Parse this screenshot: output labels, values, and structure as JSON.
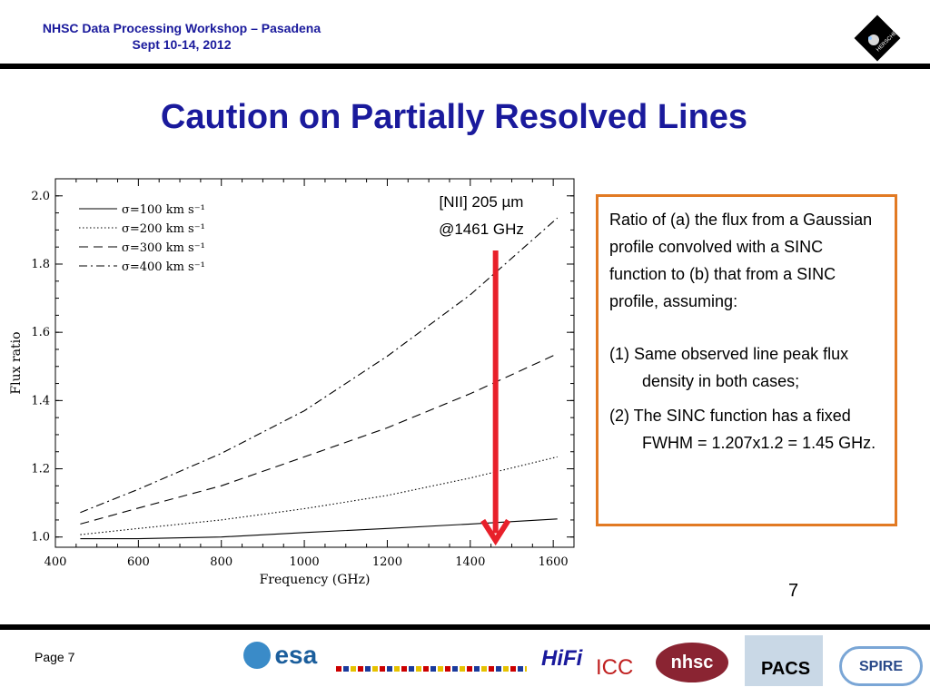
{
  "header": {
    "line1": "NHSC Data Processing Workshop – Pasadena",
    "line2": "Sept 10-14, 2012",
    "logo_text": "HERSCHEL"
  },
  "title": "Caution on Partially Resolved Lines",
  "chart_data": {
    "type": "line",
    "xlabel": "Frequency (GHz)",
    "ylabel": "Flux ratio",
    "xlim": [
      400,
      1650
    ],
    "ylim": [
      0.97,
      2.05
    ],
    "xticks": [
      "400",
      "600",
      "800",
      "1000",
      "1200",
      "1400",
      "1600"
    ],
    "yticks": [
      "1.0",
      "1.2",
      "1.4",
      "1.6",
      "1.8",
      "2.0"
    ],
    "legend": [
      "σ=100  km  s⁻¹",
      "σ=200  km  s⁻¹",
      "σ=300  km  s⁻¹",
      "σ=400  km  s⁻¹"
    ],
    "series": [
      {
        "name": "σ=100 km s-1",
        "style": "solid",
        "x": [
          460,
          600,
          800,
          1000,
          1200,
          1400,
          1610
        ],
        "y": [
          0.995,
          0.995,
          1.0,
          1.013,
          1.025,
          1.038,
          1.053
        ]
      },
      {
        "name": "σ=200 km s-1",
        "style": "dotted",
        "x": [
          460,
          600,
          800,
          1000,
          1200,
          1400,
          1610
        ],
        "y": [
          1.007,
          1.025,
          1.05,
          1.083,
          1.122,
          1.173,
          1.235
        ]
      },
      {
        "name": "σ=300 km s-1",
        "style": "dashed",
        "x": [
          460,
          600,
          800,
          1000,
          1200,
          1400,
          1610
        ],
        "y": [
          1.038,
          1.085,
          1.15,
          1.235,
          1.32,
          1.42,
          1.537
        ]
      },
      {
        "name": "σ=400 km s-1",
        "style": "dashdot",
        "x": [
          460,
          600,
          800,
          1000,
          1200,
          1400,
          1610
        ],
        "y": [
          1.072,
          1.14,
          1.245,
          1.37,
          1.53,
          1.71,
          1.935
        ]
      }
    ],
    "marker": {
      "x": 1461,
      "y_top": 1.84,
      "y_bottom": 0.99,
      "color": "#e8202a"
    }
  },
  "annotation": {
    "line1": "[NII] 205 µm",
    "line2": "@1461 GHz"
  },
  "textbox": {
    "intro": "Ratio of (a) the flux from a Gaussian profile convolved with a SINC function to (b) that from a SINC profile, assuming:",
    "item1": "(1) Same observed line peak flux density in both cases;",
    "item2": "(2) The SINC function has a fixed FWHM = 1.207x1.2 = 1.45 GHz."
  },
  "slide_number": "7",
  "footer": {
    "page": "Page 7",
    "esa": "esa",
    "hifi": "HiFi",
    "icc": "ICC",
    "nhsc": "nhsc",
    "pacs": "PACS",
    "spire": "SPIRE"
  },
  "colors": {
    "header_blue": "#1a1a9c",
    "box_border": "#e27a23",
    "arrow": "#e8202a"
  }
}
